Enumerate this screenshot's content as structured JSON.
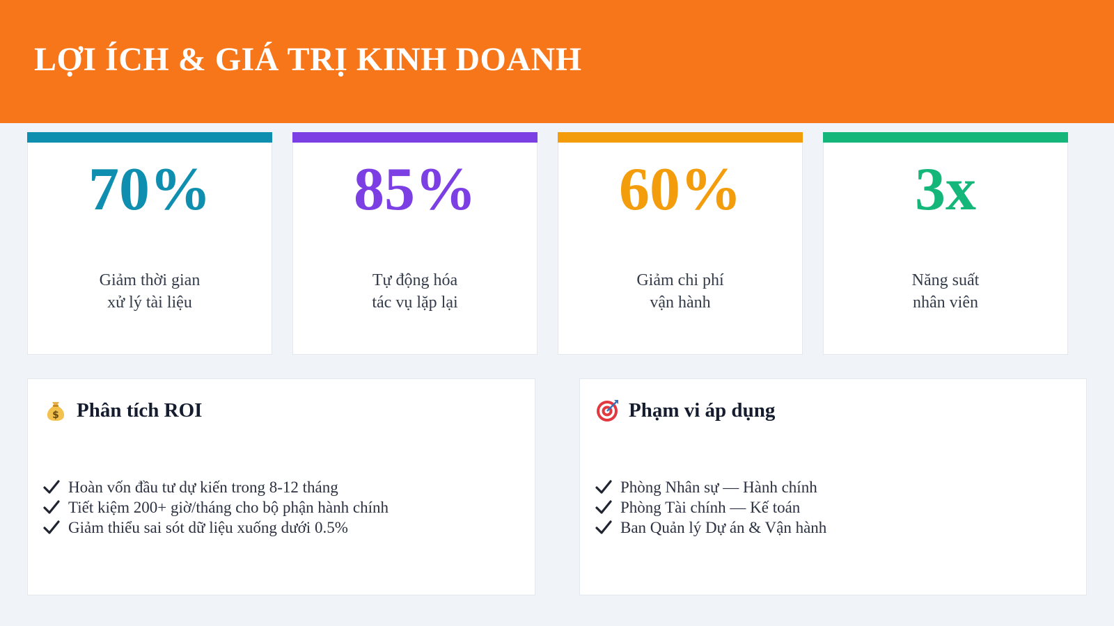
{
  "header": {
    "title": "LỢI ÍCH & GIÁ TRỊ KINH DOANH"
  },
  "metrics": [
    {
      "value": "70%",
      "label": "Giảm thời gian\nxử lý tài liệu",
      "color": "#0f8fb0"
    },
    {
      "value": "85%",
      "label": "Tự động hóa\ntác vụ lặp lại",
      "color": "#7b3fe4"
    },
    {
      "value": "60%",
      "label": "Giảm chi phí\nvận hành",
      "color": "#f39c0c"
    },
    {
      "value": "3x",
      "label": "Năng suất\nnhân viên",
      "color": "#14b67a"
    }
  ],
  "roi": {
    "icon": "money-bag-icon",
    "title": "Phân tích ROI",
    "items": [
      "Hoàn vốn đầu tư dự kiến trong 8-12 tháng",
      "Tiết kiệm 200+ giờ/tháng cho bộ phận hành chính",
      "Giảm thiểu sai sót dữ liệu xuống dưới 0.5%"
    ]
  },
  "scope": {
    "icon": "target-icon",
    "title": "Phạm vi áp dụng",
    "items": [
      "Phòng Nhân sự — Hành chính",
      "Phòng Tài chính — Kế toán",
      "Ban Quản lý Dự án & Vận hành"
    ]
  }
}
